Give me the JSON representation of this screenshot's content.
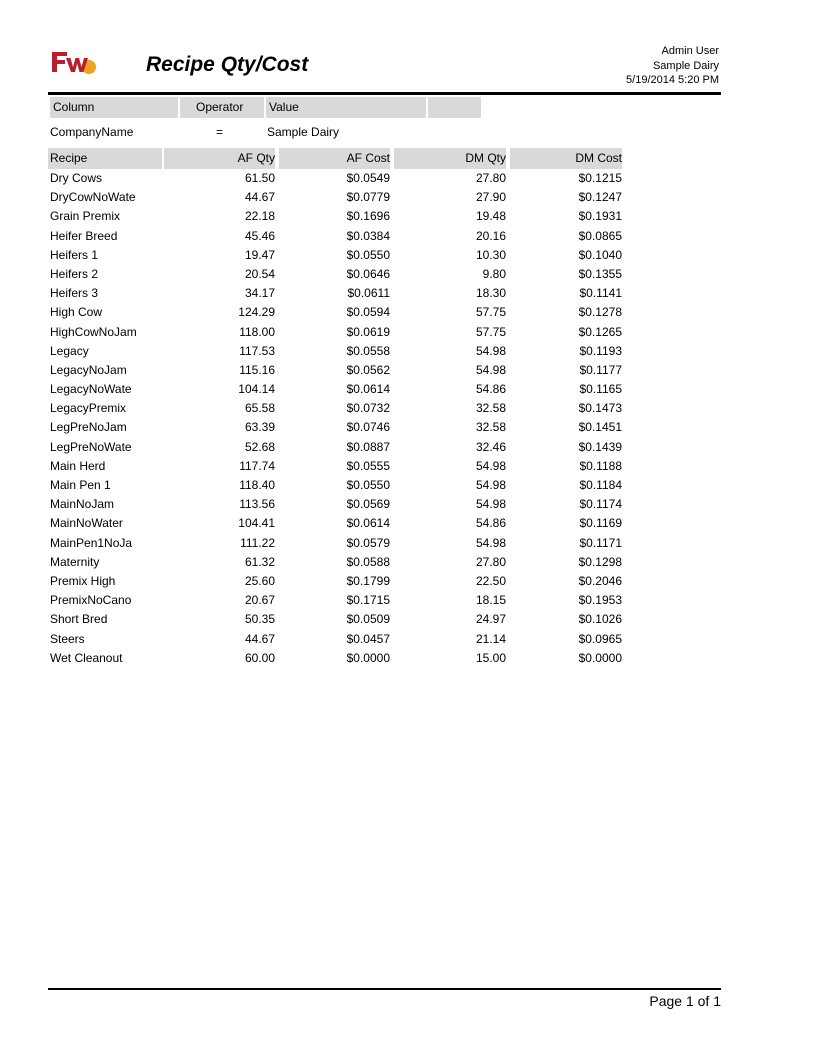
{
  "report": {
    "title": "Recipe Qty/Cost",
    "user": "Admin User",
    "company": "Sample Dairy",
    "datetime": "5/19/2014 5:20 PM",
    "logo_colors": {
      "primary": "#b81e2b",
      "accent": "#f0a223"
    }
  },
  "filter": {
    "headers": {
      "column": "Column",
      "operator": "Operator",
      "value": "Value"
    },
    "row": {
      "column": "CompanyName",
      "operator": "=",
      "value": "Sample Dairy"
    }
  },
  "table": {
    "headers": {
      "recipe": "Recipe",
      "af_qty": "AF Qty",
      "af_cost": "AF Cost",
      "dm_qty": "DM Qty",
      "dm_cost": "DM Cost"
    },
    "rows": [
      {
        "recipe": "Dry Cows",
        "af_qty": "61.50",
        "af_cost": "$0.0549",
        "dm_qty": "27.80",
        "dm_cost": "$0.1215"
      },
      {
        "recipe": "DryCowNoWate",
        "af_qty": "44.67",
        "af_cost": "$0.0779",
        "dm_qty": "27.90",
        "dm_cost": "$0.1247"
      },
      {
        "recipe": "Grain Premix",
        "af_qty": "22.18",
        "af_cost": "$0.1696",
        "dm_qty": "19.48",
        "dm_cost": "$0.1931"
      },
      {
        "recipe": "Heifer Breed",
        "af_qty": "45.46",
        "af_cost": "$0.0384",
        "dm_qty": "20.16",
        "dm_cost": "$0.0865"
      },
      {
        "recipe": "Heifers 1",
        "af_qty": "19.47",
        "af_cost": "$0.0550",
        "dm_qty": "10.30",
        "dm_cost": "$0.1040"
      },
      {
        "recipe": "Heifers 2",
        "af_qty": "20.54",
        "af_cost": "$0.0646",
        "dm_qty": "9.80",
        "dm_cost": "$0.1355"
      },
      {
        "recipe": "Heifers 3",
        "af_qty": "34.17",
        "af_cost": "$0.0611",
        "dm_qty": "18.30",
        "dm_cost": "$0.1141"
      },
      {
        "recipe": "High Cow",
        "af_qty": "124.29",
        "af_cost": "$0.0594",
        "dm_qty": "57.75",
        "dm_cost": "$0.1278"
      },
      {
        "recipe": "HighCowNoJam",
        "af_qty": "118.00",
        "af_cost": "$0.0619",
        "dm_qty": "57.75",
        "dm_cost": "$0.1265"
      },
      {
        "recipe": "Legacy",
        "af_qty": "117.53",
        "af_cost": "$0.0558",
        "dm_qty": "54.98",
        "dm_cost": "$0.1193"
      },
      {
        "recipe": "LegacyNoJam",
        "af_qty": "115.16",
        "af_cost": "$0.0562",
        "dm_qty": "54.98",
        "dm_cost": "$0.1177"
      },
      {
        "recipe": "LegacyNoWate",
        "af_qty": "104.14",
        "af_cost": "$0.0614",
        "dm_qty": "54.86",
        "dm_cost": "$0.1165"
      },
      {
        "recipe": "LegacyPremix",
        "af_qty": "65.58",
        "af_cost": "$0.0732",
        "dm_qty": "32.58",
        "dm_cost": "$0.1473"
      },
      {
        "recipe": "LegPreNoJam",
        "af_qty": "63.39",
        "af_cost": "$0.0746",
        "dm_qty": "32.58",
        "dm_cost": "$0.1451"
      },
      {
        "recipe": "LegPreNoWate",
        "af_qty": "52.68",
        "af_cost": "$0.0887",
        "dm_qty": "32.46",
        "dm_cost": "$0.1439"
      },
      {
        "recipe": "Main Herd",
        "af_qty": "117.74",
        "af_cost": "$0.0555",
        "dm_qty": "54.98",
        "dm_cost": "$0.1188"
      },
      {
        "recipe": "Main Pen 1",
        "af_qty": "118.40",
        "af_cost": "$0.0550",
        "dm_qty": "54.98",
        "dm_cost": "$0.1184"
      },
      {
        "recipe": "MainNoJam",
        "af_qty": "113.56",
        "af_cost": "$0.0569",
        "dm_qty": "54.98",
        "dm_cost": "$0.1174"
      },
      {
        "recipe": "MainNoWater",
        "af_qty": "104.41",
        "af_cost": "$0.0614",
        "dm_qty": "54.86",
        "dm_cost": "$0.1169"
      },
      {
        "recipe": "MainPen1NoJa",
        "af_qty": "111.22",
        "af_cost": "$0.0579",
        "dm_qty": "54.98",
        "dm_cost": "$0.1171"
      },
      {
        "recipe": "Maternity",
        "af_qty": "61.32",
        "af_cost": "$0.0588",
        "dm_qty": "27.80",
        "dm_cost": "$0.1298"
      },
      {
        "recipe": "Premix High",
        "af_qty": "25.60",
        "af_cost": "$0.1799",
        "dm_qty": "22.50",
        "dm_cost": "$0.2046"
      },
      {
        "recipe": "PremixNoCano",
        "af_qty": "20.67",
        "af_cost": "$0.1715",
        "dm_qty": "18.15",
        "dm_cost": "$0.1953"
      },
      {
        "recipe": "Short Bred",
        "af_qty": "50.35",
        "af_cost": "$0.0509",
        "dm_qty": "24.97",
        "dm_cost": "$0.1026"
      },
      {
        "recipe": "Steers",
        "af_qty": "44.67",
        "af_cost": "$0.0457",
        "dm_qty": "21.14",
        "dm_cost": "$0.0965"
      },
      {
        "recipe": "Wet Cleanout",
        "af_qty": "60.00",
        "af_cost": "$0.0000",
        "dm_qty": "15.00",
        "dm_cost": "$0.0000"
      }
    ]
  },
  "footer": {
    "page": "Page 1 of 1"
  }
}
